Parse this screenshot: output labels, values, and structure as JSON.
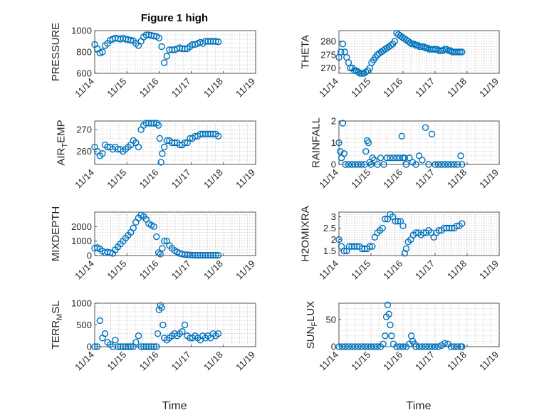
{
  "figure_title": "Figure 1 high",
  "x_axis_label": "Time",
  "marker_color": "#0072BD",
  "x_tick_labels": [
    "11/14",
    "11/15",
    "11/16",
    "11/17",
    "11/18",
    "11/19"
  ],
  "chart_data": [
    {
      "type": "scatter",
      "title": "Figure 1 high",
      "ylabel": "PRESSURE",
      "ylim": [
        600,
        1000
      ],
      "yticks": [
        600,
        800,
        1000
      ],
      "xlim": [
        0,
        5
      ],
      "xlabel": "",
      "grid": true,
      "x": [
        0.0,
        0.08,
        0.16,
        0.24,
        0.32,
        0.4,
        0.48,
        0.56,
        0.64,
        0.72,
        0.8,
        0.88,
        0.96,
        1.04,
        1.12,
        1.2,
        1.28,
        1.36,
        1.44,
        1.52,
        1.6,
        1.68,
        1.76,
        1.84,
        1.92,
        2.0,
        2.08,
        2.16,
        2.24,
        2.32,
        2.4,
        2.48,
        2.56,
        2.64,
        2.72,
        2.8,
        2.88,
        2.96,
        3.04,
        3.12,
        3.2,
        3.28,
        3.36,
        3.44,
        3.52,
        3.6,
        3.68,
        3.76,
        3.84
      ],
      "y": [
        870,
        830,
        790,
        800,
        860,
        880,
        910,
        920,
        930,
        925,
        920,
        930,
        920,
        915,
        910,
        905,
        880,
        860,
        900,
        940,
        960,
        960,
        955,
        950,
        945,
        930,
        850,
        700,
        760,
        820,
        820,
        820,
        830,
        840,
        830,
        830,
        830,
        850,
        870,
        870,
        880,
        890,
        880,
        900,
        900,
        900,
        900,
        900,
        895
      ]
    },
    {
      "type": "scatter",
      "ylabel": "THETA",
      "ylim": [
        268,
        284
      ],
      "yticks": [
        270,
        275,
        280
      ],
      "xlim": [
        0,
        5
      ],
      "xlabel": "",
      "grid": true,
      "x": [
        0.0,
        0.06,
        0.12,
        0.18,
        0.24,
        0.3,
        0.36,
        0.42,
        0.48,
        0.54,
        0.6,
        0.66,
        0.72,
        0.78,
        0.84,
        0.9,
        0.96,
        1.02,
        1.08,
        1.14,
        1.2,
        1.26,
        1.32,
        1.38,
        1.44,
        1.5,
        1.56,
        1.62,
        1.68,
        1.74,
        1.8,
        1.86,
        1.92,
        1.98,
        2.04,
        2.1,
        2.16,
        2.22,
        2.28,
        2.34,
        2.4,
        2.46,
        2.52,
        2.58,
        2.64,
        2.7,
        2.76,
        2.82,
        2.88,
        2.94,
        3.0,
        3.06,
        3.12,
        3.18,
        3.24,
        3.3,
        3.36,
        3.42,
        3.48,
        3.54,
        3.6,
        3.66,
        3.72,
        3.78,
        3.84
      ],
      "y": [
        274,
        276,
        279,
        276,
        274,
        272,
        270,
        270,
        269,
        269,
        268.5,
        268,
        268,
        268,
        268.5,
        269,
        270,
        272,
        273,
        274,
        275,
        275.5,
        276,
        276.5,
        277,
        277.5,
        278,
        278.5,
        279,
        280,
        283,
        282.5,
        282,
        281.5,
        281,
        280.5,
        280,
        279.5,
        279,
        279,
        278.5,
        278.5,
        278,
        278,
        278,
        277.5,
        277.5,
        277,
        277,
        277,
        277,
        277,
        276.5,
        276.5,
        276.5,
        277,
        277,
        276.5,
        276.5,
        276,
        276,
        276,
        276,
        276,
        276
      ]
    },
    {
      "type": "scatter",
      "ylabel": "AIR_TEMP",
      "ylim": [
        254,
        274
      ],
      "yticks": [
        260,
        270
      ],
      "xlim": [
        0,
        5
      ],
      "xlabel": "",
      "grid": true,
      "x": [
        0.0,
        0.08,
        0.16,
        0.24,
        0.32,
        0.4,
        0.48,
        0.56,
        0.64,
        0.72,
        0.8,
        0.88,
        0.96,
        1.04,
        1.12,
        1.2,
        1.28,
        1.36,
        1.44,
        1.52,
        1.6,
        1.68,
        1.76,
        1.84,
        1.92,
        1.98,
        2.02,
        2.06,
        2.1,
        2.16,
        2.24,
        2.32,
        2.4,
        2.48,
        2.56,
        2.64,
        2.72,
        2.8,
        2.88,
        2.96,
        3.04,
        3.12,
        3.2,
        3.28,
        3.36,
        3.44,
        3.52,
        3.6,
        3.68,
        3.76,
        3.84
      ],
      "y": [
        262,
        260,
        258,
        259,
        263,
        262,
        262,
        261,
        262,
        261,
        261,
        260,
        261,
        262,
        263,
        265,
        264,
        262,
        270,
        272,
        273,
        273,
        273,
        273,
        273,
        272,
        266,
        255,
        259,
        262,
        265,
        265,
        264,
        264,
        264,
        263,
        263,
        264,
        264,
        266,
        266,
        267,
        267,
        268,
        268,
        268,
        268,
        268,
        268,
        268,
        267
      ]
    },
    {
      "type": "scatter",
      "ylabel": "RAINFALL",
      "ylim": [
        0,
        2
      ],
      "yticks": [
        0,
        1,
        2
      ],
      "xlim": [
        0,
        5
      ],
      "xlabel": "",
      "grid": true,
      "x": [
        0.0,
        0.04,
        0.08,
        0.12,
        0.16,
        0.2,
        0.3,
        0.4,
        0.5,
        0.6,
        0.7,
        0.8,
        0.84,
        0.88,
        0.92,
        0.96,
        1.0,
        1.05,
        1.1,
        1.2,
        1.3,
        1.4,
        1.5,
        1.6,
        1.7,
        1.8,
        1.9,
        1.96,
        2.0,
        2.05,
        2.1,
        2.2,
        2.3,
        2.4,
        2.5,
        2.6,
        2.7,
        2.8,
        2.9,
        3.0,
        3.1,
        3.2,
        3.3,
        3.4,
        3.5,
        3.6,
        3.7,
        3.8,
        3.84
      ],
      "y": [
        1.0,
        0.6,
        0.3,
        1.9,
        0.5,
        0.0,
        0.0,
        0.0,
        0.0,
        0.0,
        0.0,
        0.0,
        0.6,
        1.1,
        1.0,
        0.1,
        0.0,
        0.3,
        0.2,
        0.0,
        0.3,
        0.0,
        0.3,
        0.3,
        0.3,
        0.3,
        0.3,
        1.3,
        0.3,
        0.3,
        0.0,
        0.3,
        0.1,
        0.0,
        0.4,
        0.2,
        1.7,
        0.0,
        1.4,
        0.0,
        0.0,
        0.0,
        0.0,
        0.0,
        0.0,
        0.0,
        0.0,
        0.4,
        0.0
      ]
    },
    {
      "type": "scatter",
      "ylabel": "MIXDEPTH",
      "ylim": [
        0,
        3000
      ],
      "yticks": [
        0,
        1000,
        2000
      ],
      "xlim": [
        0,
        5
      ],
      "xlabel": "",
      "grid": true,
      "x": [
        0.0,
        0.08,
        0.16,
        0.24,
        0.32,
        0.4,
        0.48,
        0.56,
        0.64,
        0.72,
        0.8,
        0.88,
        0.96,
        1.04,
        1.12,
        1.2,
        1.28,
        1.36,
        1.44,
        1.52,
        1.6,
        1.68,
        1.76,
        1.84,
        1.92,
        1.98,
        2.04,
        2.1,
        2.16,
        2.24,
        2.32,
        2.4,
        2.48,
        2.56,
        2.64,
        2.72,
        2.8,
        2.88,
        2.96,
        3.04,
        3.12,
        3.2,
        3.28,
        3.36,
        3.44,
        3.52,
        3.6,
        3.68,
        3.76,
        3.84
      ],
      "y": [
        500,
        550,
        450,
        300,
        200,
        250,
        200,
        150,
        400,
        600,
        800,
        1000,
        1200,
        1400,
        1600,
        1900,
        2300,
        2600,
        2800,
        2700,
        2500,
        2200,
        2100,
        2000,
        1300,
        200,
        100,
        500,
        1000,
        1000,
        700,
        500,
        350,
        250,
        150,
        100,
        60,
        50,
        40,
        30,
        20,
        20,
        20,
        20,
        20,
        20,
        20,
        20,
        20,
        20
      ]
    },
    {
      "type": "scatter",
      "ylabel": "H2OMIXRA",
      "ylim": [
        1.3,
        3.2
      ],
      "yticks": [
        1.5,
        2,
        2.5,
        3
      ],
      "xlim": [
        0,
        5
      ],
      "xlabel": "",
      "grid": true,
      "x": [
        0.0,
        0.08,
        0.16,
        0.24,
        0.32,
        0.4,
        0.48,
        0.56,
        0.64,
        0.72,
        0.8,
        0.88,
        0.96,
        1.04,
        1.12,
        1.2,
        1.28,
        1.36,
        1.44,
        1.52,
        1.6,
        1.68,
        1.76,
        1.84,
        1.92,
        2.0,
        2.05,
        2.1,
        2.16,
        2.24,
        2.32,
        2.4,
        2.48,
        2.56,
        2.64,
        2.72,
        2.8,
        2.88,
        2.96,
        3.04,
        3.12,
        3.2,
        3.28,
        3.36,
        3.44,
        3.52,
        3.6,
        3.68,
        3.76,
        3.84
      ],
      "y": [
        2.0,
        1.7,
        1.5,
        1.5,
        1.7,
        1.7,
        1.7,
        1.7,
        1.7,
        1.6,
        1.6,
        1.6,
        1.7,
        1.7,
        2.1,
        2.3,
        2.4,
        2.5,
        2.9,
        2.9,
        3.1,
        3.0,
        2.8,
        2.8,
        2.8,
        2.6,
        1.4,
        1.6,
        1.9,
        2.0,
        2.2,
        2.3,
        2.3,
        2.2,
        2.3,
        2.3,
        2.4,
        2.3,
        2.1,
        2.3,
        2.4,
        2.4,
        2.5,
        2.5,
        2.5,
        2.5,
        2.5,
        2.6,
        2.6,
        2.7
      ]
    },
    {
      "type": "scatter",
      "ylabel": "TERR_MSL",
      "ylim": [
        0,
        1000
      ],
      "yticks": [
        0,
        500,
        1000
      ],
      "xlim": [
        0,
        5
      ],
      "xlabel": "",
      "grid": true,
      "x": [
        0.0,
        0.08,
        0.16,
        0.24,
        0.32,
        0.4,
        0.48,
        0.56,
        0.64,
        0.72,
        0.8,
        0.88,
        0.96,
        1.04,
        1.12,
        1.2,
        1.28,
        1.36,
        1.44,
        1.52,
        1.6,
        1.68,
        1.76,
        1.84,
        1.92,
        1.96,
        2.0,
        2.04,
        2.08,
        2.12,
        2.16,
        2.24,
        2.32,
        2.4,
        2.48,
        2.56,
        2.64,
        2.72,
        2.8,
        2.88,
        2.96,
        3.04,
        3.12,
        3.2,
        3.28,
        3.36,
        3.44,
        3.52,
        3.6,
        3.68,
        3.76,
        3.84
      ],
      "y": [
        0,
        0,
        600,
        200,
        300,
        100,
        50,
        0,
        150,
        0,
        0,
        0,
        0,
        0,
        0,
        0,
        100,
        250,
        0,
        0,
        0,
        0,
        0,
        0,
        0,
        300,
        850,
        950,
        900,
        500,
        200,
        150,
        200,
        250,
        300,
        250,
        300,
        350,
        500,
        250,
        200,
        200,
        250,
        200,
        150,
        250,
        200,
        250,
        200,
        300,
        250,
        300
      ]
    },
    {
      "type": "scatter",
      "ylabel": "SUN_FLUX",
      "ylim": [
        0,
        80
      ],
      "yticks": [
        0,
        50
      ],
      "xlim": [
        0,
        5
      ],
      "xlabel": "",
      "grid": true,
      "x": [
        0.0,
        0.1,
        0.2,
        0.3,
        0.4,
        0.5,
        0.6,
        0.7,
        0.8,
        0.9,
        1.0,
        1.1,
        1.2,
        1.3,
        1.38,
        1.44,
        1.48,
        1.52,
        1.56,
        1.6,
        1.64,
        1.7,
        1.8,
        1.9,
        2.0,
        2.1,
        2.2,
        2.26,
        2.3,
        2.36,
        2.4,
        2.5,
        2.6,
        2.7,
        2.8,
        2.9,
        3.0,
        3.1,
        3.2,
        3.3,
        3.4,
        3.5,
        3.6,
        3.7,
        3.8,
        3.84
      ],
      "y": [
        0,
        0,
        0,
        0,
        0,
        0,
        0,
        0,
        0,
        0,
        0,
        0,
        0,
        0,
        5,
        20,
        55,
        77,
        60,
        40,
        20,
        5,
        0,
        0,
        0,
        0,
        5,
        20,
        10,
        5,
        0,
        0,
        0,
        0,
        0,
        0,
        0,
        0,
        2,
        6,
        5,
        0,
        0,
        0,
        0,
        0
      ]
    }
  ]
}
